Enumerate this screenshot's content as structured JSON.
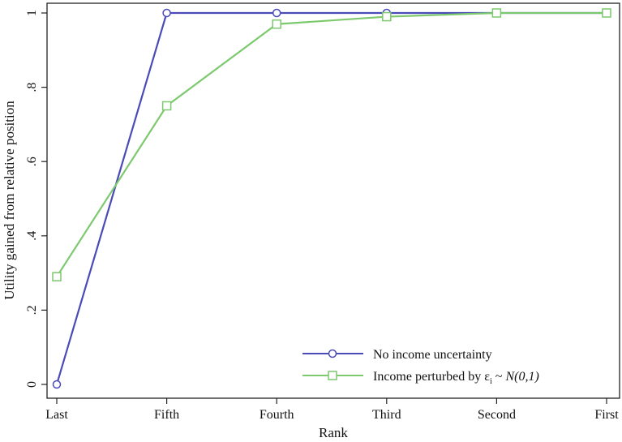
{
  "chart_data": {
    "type": "line",
    "categories": [
      "Last",
      "Fifth",
      "Fourth",
      "Third",
      "Second",
      "First"
    ],
    "ylabel": "Utility gained from relative position",
    "xlabel": "Rank",
    "ylim": [
      0,
      1
    ],
    "yticks": [
      0,
      0.2,
      0.4,
      0.6,
      0.8,
      1
    ],
    "ytick_labels": [
      "0",
      ".2",
      ".4",
      ".6",
      ".8",
      "1"
    ],
    "grid": false,
    "legend_position": "bottom-right",
    "series": [
      {
        "name": "No income uncertainty",
        "color": "#4a4ab8",
        "marker": "circle",
        "values": [
          0.0,
          1.0,
          1.0,
          1.0,
          1.0,
          1.0
        ]
      },
      {
        "name": "Income perturbed by ε",
        "name_subscript": "i",
        "name_tail_plain": " ~ ",
        "name_tail_italic": "N(0,1)",
        "color": "#7cc96e",
        "marker": "square",
        "values": [
          0.29,
          0.75,
          0.97,
          0.99,
          1.0,
          1.0
        ]
      }
    ]
  }
}
